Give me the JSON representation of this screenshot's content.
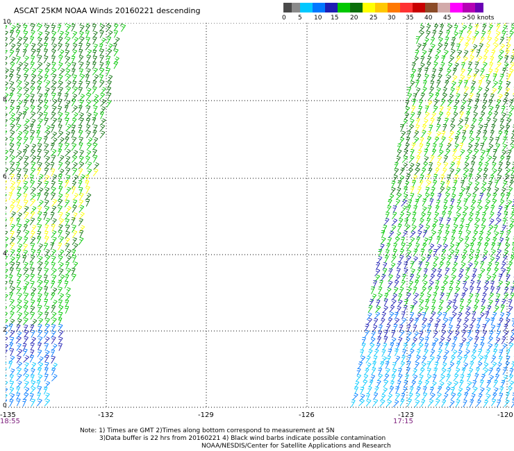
{
  "title": "ASCAT 25KM NOAA Winds 20160221 descending",
  "legend": {
    "colors": [
      "#4a4a4a",
      "#8a8a8a",
      "#00c8ff",
      "#0078ff",
      "#1e1eb4",
      "#00c800",
      "#0a6e0a",
      "#ffff00",
      "#ffc800",
      "#ff7800",
      "#ff3232",
      "#c80000",
      "#8c4b28",
      "#d2aaaa",
      "#ff00ff",
      "#b400b4",
      "#6a00b4"
    ],
    "ticks": [
      "0",
      "5",
      "10",
      "15",
      "20",
      "25",
      "30",
      "35",
      "40",
      "45",
      ">50 knots"
    ]
  },
  "axes": {
    "x_ticks": [
      "-135",
      "-132",
      "-129",
      "-126",
      "-123",
      "-120"
    ],
    "y_ticks": [
      "10",
      "8",
      "6",
      "4",
      "2",
      "0"
    ]
  },
  "times": {
    "left": "18:55",
    "right": "17:15"
  },
  "notes": [
    "Note: 1) Times are GMT 2)Times along bottom correspond to measurement at 5N",
    "3)Data buffer is 22 hrs from 20160221 4) Black wind barbs indicate possible contamination",
    "NOAA/NESDIS/Center for Satellite Applications and Research"
  ],
  "barb_colors": {
    "dark_green": "#0a6e0a",
    "green": "#00c800",
    "yellow": "#ffff00",
    "navy": "#1e1eb4",
    "blue": "#0078ff",
    "cyan": "#00c8ff"
  }
}
